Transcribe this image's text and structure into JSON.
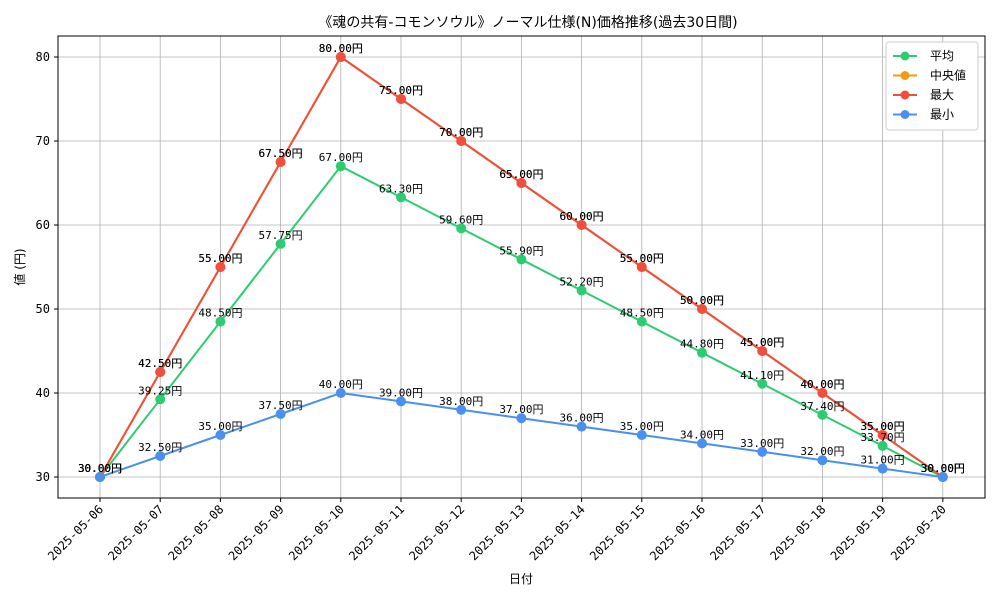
{
  "chart_data": {
    "type": "line",
    "title": "《魂の共有-コモンソウル》ノーマル仕様(N)価格推移(過去30日間)",
    "xlabel": "日付",
    "ylabel": "値 (円)",
    "ylim": [
      27.5,
      82.5
    ],
    "yticks": [
      30,
      40,
      50,
      60,
      70,
      80
    ],
    "grid": true,
    "legend_position": "top-right",
    "label_suffix": "円",
    "categories": [
      "2025-05-06",
      "2025-05-07",
      "2025-05-08",
      "2025-05-09",
      "2025-05-10",
      "2025-05-11",
      "2025-05-12",
      "2025-05-13",
      "2025-05-14",
      "2025-05-15",
      "2025-05-16",
      "2025-05-17",
      "2025-05-18",
      "2025-05-19",
      "2025-05-20"
    ],
    "series": [
      {
        "name": "平均",
        "color": "#2ecc71",
        "values": [
          30.0,
          39.25,
          48.5,
          57.75,
          67.0,
          63.3,
          59.6,
          55.9,
          52.2,
          48.5,
          44.8,
          41.1,
          37.4,
          33.7,
          30.0
        ]
      },
      {
        "name": "中央値",
        "color": "#f39c12",
        "values": [
          30.0,
          42.5,
          55.0,
          67.5,
          80.0,
          75.0,
          70.0,
          65.0,
          60.0,
          55.0,
          50.0,
          45.0,
          40.0,
          35.0,
          30.0
        ]
      },
      {
        "name": "最大",
        "color": "#f04e3e",
        "values": [
          30.0,
          42.5,
          55.0,
          67.5,
          80.0,
          75.0,
          70.0,
          65.0,
          60.0,
          55.0,
          50.0,
          45.0,
          40.0,
          35.0,
          30.0
        ]
      },
      {
        "name": "最小",
        "color": "#4a90f0",
        "values": [
          30.0,
          32.5,
          35.0,
          37.5,
          40.0,
          39.0,
          38.0,
          37.0,
          36.0,
          35.0,
          34.0,
          33.0,
          32.0,
          31.0,
          30.0
        ]
      }
    ]
  }
}
